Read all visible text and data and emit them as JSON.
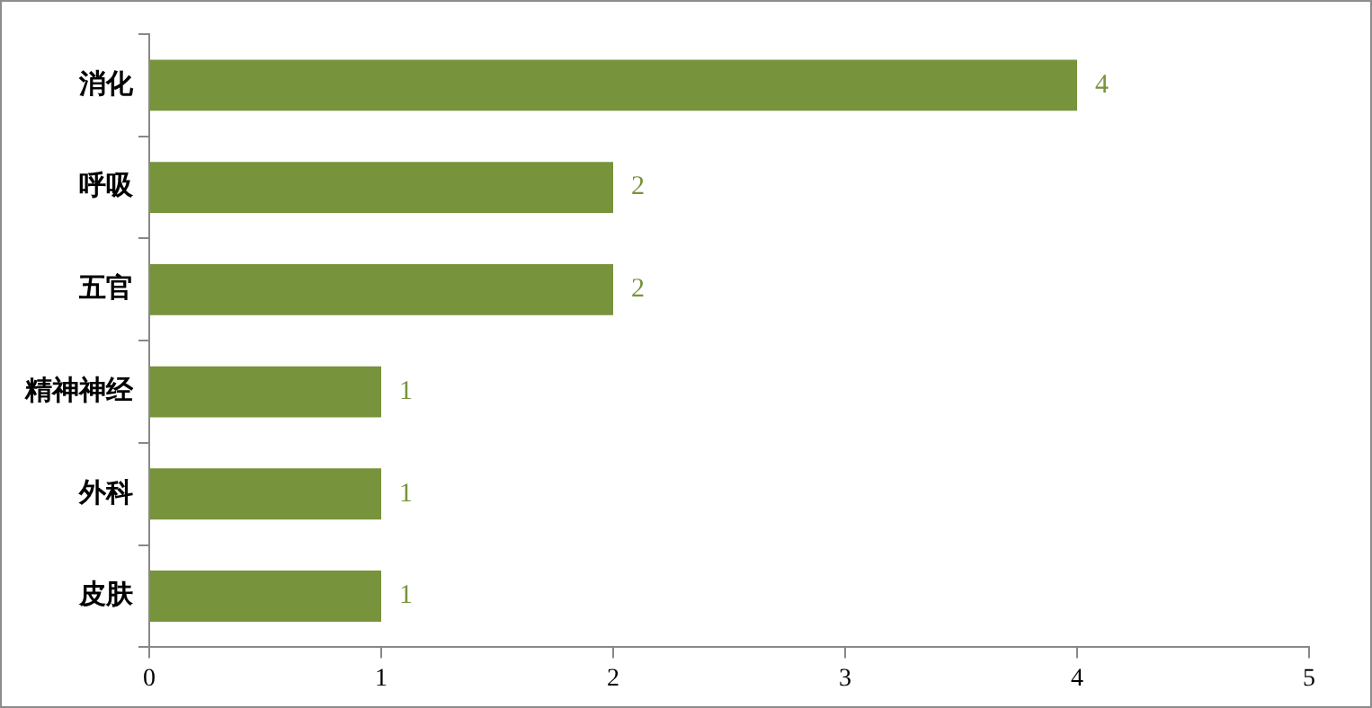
{
  "chart_data": {
    "type": "bar",
    "orientation": "horizontal",
    "categories": [
      "消化",
      "呼吸",
      "五官",
      "精神神经",
      "外科",
      "皮肤"
    ],
    "values": [
      4,
      2,
      2,
      1,
      1,
      1
    ],
    "color": "#77933c",
    "xlim": [
      0,
      5
    ],
    "xticks": [
      0,
      1,
      2,
      3,
      4,
      5
    ],
    "grid": false,
    "legend": false,
    "data_labels": true
  }
}
